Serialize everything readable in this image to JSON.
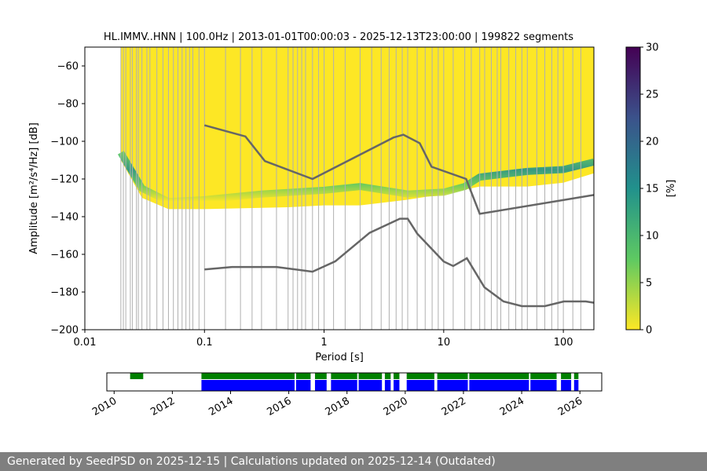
{
  "footer": {
    "text": "Generated by SeedPSD on 2025-12-15 | Calculations updated on 2025-12-14 (Outdated)"
  },
  "chart_data": [
    {
      "type": "heatmap",
      "title": "HL.IMMV..HNN | 100.0Hz | 2013-01-01T00:00:03 - 2025-12-13T23:00:00 | 199822 segments",
      "xlabel": "Period [s]",
      "ylabel": "Amplitude [m²/s⁴/Hz] [dB]",
      "x_scale": "log",
      "xlim": [
        0.01,
        180
      ],
      "ylim": [
        -200,
        -50
      ],
      "x_ticks": [
        "0.01",
        "0.1",
        "1",
        "10",
        "100"
      ],
      "y_ticks": [
        -60,
        -80,
        -100,
        -120,
        -140,
        -160,
        -180,
        -200
      ],
      "grid": "vertical lines at period bins",
      "colormap": "viridis",
      "colorbar": {
        "label": "[%]",
        "range": [
          0,
          30
        ],
        "ticks": [
          0,
          5,
          10,
          15,
          20,
          25,
          30
        ],
        "stops": [
          "#fde725",
          "#5ec962",
          "#21918c",
          "#3b528b",
          "#440154"
        ]
      },
      "ppsd_upper_envelope": {
        "x": [
          0.02,
          0.03,
          0.1,
          1,
          5,
          20,
          180
        ],
        "y": [
          -50,
          -50,
          -50,
          -50,
          -50,
          -50,
          -50
        ]
      },
      "ppsd_lower_envelope": {
        "x": [
          0.02,
          0.03,
          0.05,
          0.1,
          0.5,
          1,
          2,
          5,
          10,
          20,
          50,
          100,
          180
        ],
        "y": [
          -110,
          -130,
          -136,
          -136,
          -135,
          -134,
          -134,
          -131,
          -128,
          -124,
          -124,
          -122,
          -117
        ]
      },
      "mode_band": {
        "x": [
          0.02,
          0.03,
          0.05,
          0.1,
          0.3,
          1,
          2,
          5,
          10,
          15,
          20,
          50,
          100,
          180
        ],
        "y": [
          -106,
          -125,
          -132,
          -131,
          -128,
          -126,
          -124,
          -128,
          -127,
          -124,
          -119,
          -116,
          -115,
          -111
        ]
      },
      "nhnm": {
        "x": [
          0.1,
          0.22,
          0.32,
          0.8,
          3.8,
          4.6,
          6.3,
          7.9,
          15.4,
          20,
          180
        ],
        "y": [
          -91.5,
          -97.4,
          -110.5,
          -120,
          -98,
          -96.5,
          -101,
          -113.5,
          -120,
          -138.5,
          -128.5
        ]
      },
      "nlnm": {
        "x": [
          0.1,
          0.17,
          0.4,
          0.8,
          1.24,
          2.4,
          4.3,
          5,
          6,
          10,
          12,
          15.6,
          21.9,
          31.6,
          45,
          70,
          101,
          154,
          180
        ],
        "y": [
          -168,
          -166.7,
          -166.7,
          -169.2,
          -163.7,
          -148.6,
          -141.1,
          -141.1,
          -149,
          -163.8,
          -166.2,
          -162.1,
          -177.5,
          -185,
          -187.5,
          -187.5,
          -185,
          -185,
          -185.7
        ]
      },
      "period_bins": [
        0.02,
        0.021,
        0.022,
        0.024,
        0.025,
        0.027,
        0.028,
        0.03,
        0.033,
        0.035,
        0.04,
        0.045,
        0.05,
        0.055,
        0.06,
        0.065,
        0.07,
        0.075,
        0.08,
        0.09,
        0.1,
        0.15,
        0.2,
        0.25,
        0.3,
        0.4,
        0.5,
        0.55,
        0.6,
        0.65,
        0.7,
        0.8,
        0.9,
        1.0,
        1.2,
        1.5,
        2.0,
        2.5,
        3.0,
        3.5,
        4.0,
        4.5,
        5.0,
        6.0,
        7.0,
        8.0,
        9.0,
        10,
        12,
        15,
        17,
        20,
        22,
        25,
        28,
        30,
        35,
        40,
        45,
        50,
        60,
        70,
        80,
        90,
        100,
        120,
        140
      ]
    },
    {
      "type": "timeline",
      "xlim": [
        2009.75,
        2026.75
      ],
      "x_ticks": [
        "2010",
        "2012",
        "2014",
        "2016",
        "2018",
        "2020",
        "2022",
        "2024",
        "2026"
      ],
      "green_segments": [
        [
          2010.55,
          2011.0
        ],
        [
          2013.0,
          2016.2
        ],
        [
          2016.25,
          2016.75
        ],
        [
          2016.9,
          2017.3
        ],
        [
          2017.45,
          2018.35
        ],
        [
          2018.4,
          2019.2
        ],
        [
          2019.3,
          2019.5
        ],
        [
          2019.6,
          2019.8
        ],
        [
          2020.05,
          2021.0
        ],
        [
          2021.1,
          2022.15
        ],
        [
          2022.2,
          2024.25
        ],
        [
          2024.3,
          2025.2
        ],
        [
          2025.35,
          2025.7
        ],
        [
          2025.8,
          2025.95
        ]
      ],
      "blue_segments": [
        [
          2013.0,
          2016.2
        ],
        [
          2016.25,
          2016.75
        ],
        [
          2016.9,
          2017.3
        ],
        [
          2017.45,
          2018.35
        ],
        [
          2018.4,
          2019.2
        ],
        [
          2019.3,
          2019.5
        ],
        [
          2019.6,
          2019.8
        ],
        [
          2020.05,
          2021.0
        ],
        [
          2021.1,
          2022.15
        ],
        [
          2022.2,
          2024.25
        ],
        [
          2024.3,
          2025.2
        ],
        [
          2025.35,
          2025.7
        ],
        [
          2025.8,
          2025.95
        ]
      ],
      "colors": {
        "green": "#008000",
        "blue": "#0000ff"
      }
    }
  ]
}
